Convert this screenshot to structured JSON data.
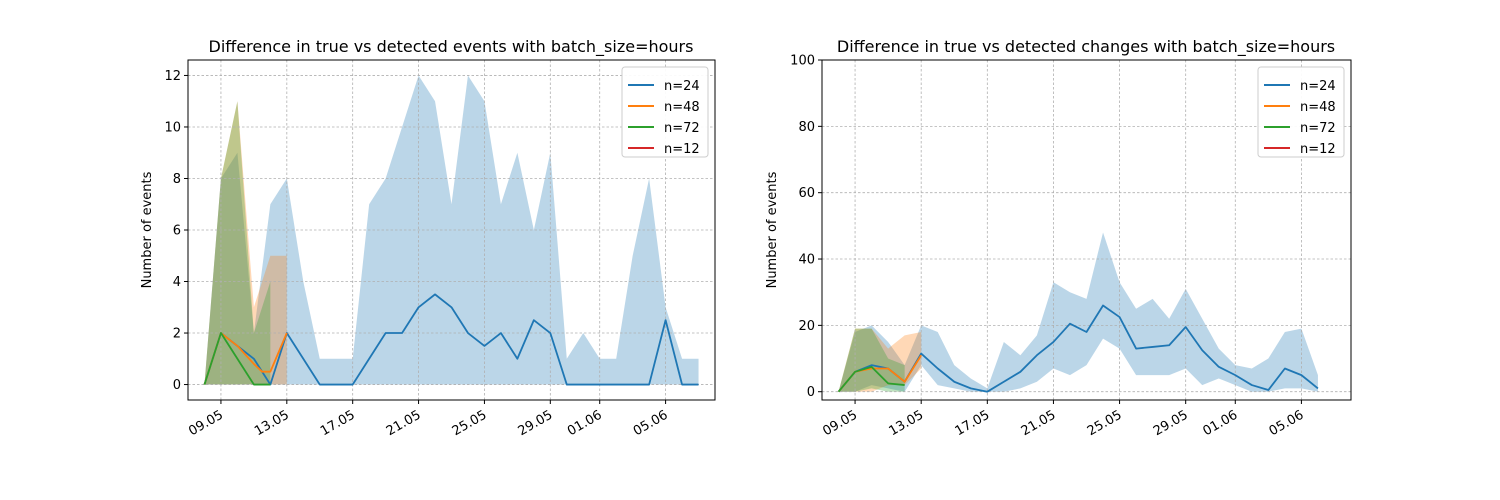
{
  "chart_data": [
    {
      "type": "line",
      "title": "Difference in true vs detected events with batch_size=hours",
      "xlabel": "",
      "ylabel": "Number of events",
      "ylim": [
        -0.6,
        12.6
      ],
      "yticks": [
        0,
        2,
        4,
        6,
        8,
        10,
        12
      ],
      "xlim": [
        "2024-05-07",
        "2024-06-08"
      ],
      "xtick_dates": [
        "2024-05-09",
        "2024-05-13",
        "2024-05-17",
        "2024-05-21",
        "2024-05-25",
        "2024-05-29",
        "2024-06-01",
        "2024-06-05"
      ],
      "xtick_labels": [
        "09.05",
        "13.05",
        "17.05",
        "21.05",
        "25.05",
        "29.05",
        "01.06",
        "05.06"
      ],
      "grid": true,
      "legend_position": "top-right",
      "series": [
        {
          "name": "n=24",
          "color": "#1f77b4",
          "x": [
            "2024-05-08",
            "2024-05-09",
            "2024-05-10",
            "2024-05-11",
            "2024-05-12",
            "2024-05-13",
            "2024-05-14",
            "2024-05-15",
            "2024-05-16",
            "2024-05-17",
            "2024-05-18",
            "2024-05-19",
            "2024-05-20",
            "2024-05-21",
            "2024-05-22",
            "2024-05-23",
            "2024-05-24",
            "2024-05-25",
            "2024-05-26",
            "2024-05-27",
            "2024-05-28",
            "2024-05-29",
            "2024-05-30",
            "2024-05-31",
            "2024-06-01",
            "2024-06-02",
            "2024-06-03",
            "2024-06-04",
            "2024-06-05",
            "2024-06-06",
            "2024-06-07"
          ],
          "values": [
            0,
            2,
            1.5,
            1,
            0,
            2,
            1,
            0,
            0,
            0,
            1,
            2,
            2,
            3,
            3.5,
            3,
            2,
            1.5,
            2,
            1,
            2.5,
            2,
            0,
            0,
            0,
            0,
            0,
            0,
            2.5,
            0,
            0
          ],
          "lower": [
            0,
            0,
            0,
            0,
            0,
            0,
            0,
            0,
            0,
            0,
            0,
            0,
            0,
            0,
            0,
            0,
            0,
            0,
            0,
            0,
            0,
            0,
            0,
            0,
            0,
            0,
            0,
            0,
            0,
            0,
            0
          ],
          "upper": [
            0,
            8,
            9,
            2,
            7,
            8,
            4,
            1,
            1,
            1,
            7,
            8,
            10,
            12,
            11,
            7,
            12,
            11,
            7,
            9,
            6,
            9,
            1,
            2,
            1,
            1,
            5,
            8,
            3,
            1,
            1
          ]
        },
        {
          "name": "n=48",
          "color": "#ff7f0e",
          "x": [
            "2024-05-08",
            "2024-05-09",
            "2024-05-10",
            "2024-05-11",
            "2024-05-11T12:00",
            "2024-05-12",
            "2024-05-13"
          ],
          "values": [
            0,
            2,
            1.5,
            0.8,
            0.5,
            0.5,
            2
          ],
          "lower": [
            0,
            0,
            0,
            0,
            0,
            0,
            0
          ],
          "upper": [
            0,
            8,
            11,
            3,
            4,
            5,
            5
          ]
        },
        {
          "name": "n=72",
          "color": "#2ca02c",
          "x": [
            "2024-05-08",
            "2024-05-09",
            "2024-05-10",
            "2024-05-11",
            "2024-05-12"
          ],
          "values": [
            0,
            2,
            1,
            0,
            0
          ],
          "lower": [
            0,
            0,
            0,
            0,
            0
          ],
          "upper": [
            0,
            8,
            11,
            2,
            4
          ]
        },
        {
          "name": "n=12",
          "color": "#d62728",
          "x": [],
          "values": [],
          "lower": [],
          "upper": []
        }
      ]
    },
    {
      "type": "line",
      "title": "Difference in true vs detected changes with batch_size=hours",
      "xlabel": "",
      "ylabel": "Number of events",
      "ylim": [
        -2.5,
        100
      ],
      "yticks": [
        0,
        20,
        40,
        60,
        80,
        100
      ],
      "xlim": [
        "2024-05-07",
        "2024-06-08"
      ],
      "xtick_dates": [
        "2024-05-09",
        "2024-05-13",
        "2024-05-17",
        "2024-05-21",
        "2024-05-25",
        "2024-05-29",
        "2024-06-01",
        "2024-06-05"
      ],
      "xtick_labels": [
        "09.05",
        "13.05",
        "17.05",
        "21.05",
        "25.05",
        "29.05",
        "01.06",
        "05.06"
      ],
      "grid": true,
      "legend_position": "top-right",
      "series": [
        {
          "name": "n=24",
          "color": "#1f77b4",
          "x": [
            "2024-05-08",
            "2024-05-09",
            "2024-05-10",
            "2024-05-11",
            "2024-05-12",
            "2024-05-13",
            "2024-05-14",
            "2024-05-15",
            "2024-05-16",
            "2024-05-17",
            "2024-05-18",
            "2024-05-19",
            "2024-05-20",
            "2024-05-21",
            "2024-05-22",
            "2024-05-23",
            "2024-05-24",
            "2024-05-25",
            "2024-05-26",
            "2024-05-27",
            "2024-05-28",
            "2024-05-29",
            "2024-05-30",
            "2024-05-31",
            "2024-06-01",
            "2024-06-02",
            "2024-06-03",
            "2024-06-04",
            "2024-06-05",
            "2024-06-06",
            "2024-06-07"
          ],
          "values": [
            0,
            6,
            8,
            7,
            3,
            11.5,
            7,
            3,
            1,
            0,
            3,
            6,
            11,
            15,
            20.5,
            18,
            26,
            22.5,
            13,
            13.5,
            14,
            19.5,
            12.5,
            7.5,
            5,
            2,
            0.5,
            7,
            5,
            1,
            null
          ],
          "lower": [
            0,
            0,
            2,
            1,
            0,
            8,
            2,
            1,
            0,
            0,
            0,
            1,
            3,
            7,
            5,
            8,
            16,
            13,
            5,
            5,
            5,
            7,
            2,
            4,
            2,
            0,
            0,
            1,
            1,
            0,
            null
          ],
          "upper": [
            0,
            18,
            20,
            15,
            8,
            20,
            18,
            8,
            4,
            1,
            15,
            11,
            17,
            33,
            30,
            28,
            48,
            33,
            25,
            28,
            22,
            31,
            22,
            13,
            8,
            7,
            10,
            18,
            19,
            5,
            null
          ]
        },
        {
          "name": "n=48",
          "color": "#ff7f0e",
          "x": [
            "2024-05-08",
            "2024-05-09",
            "2024-05-10",
            "2024-05-11",
            "2024-05-12",
            "2024-05-13"
          ],
          "values": [
            0,
            6,
            7,
            7,
            3,
            11
          ],
          "lower": [
            0,
            0,
            0,
            2,
            2,
            7
          ],
          "upper": [
            0,
            19,
            19,
            13,
            17,
            18
          ]
        },
        {
          "name": "n=72",
          "color": "#2ca02c",
          "x": [
            "2024-05-08",
            "2024-05-09",
            "2024-05-10",
            "2024-05-11",
            "2024-05-12"
          ],
          "values": [
            0,
            6,
            7.5,
            2.5,
            2
          ],
          "lower": [
            0,
            0,
            1,
            0,
            0
          ],
          "upper": [
            0,
            19,
            19,
            10,
            8
          ]
        },
        {
          "name": "n=12",
          "color": "#d62728",
          "x": [],
          "values": [],
          "lower": [],
          "upper": []
        }
      ]
    }
  ]
}
